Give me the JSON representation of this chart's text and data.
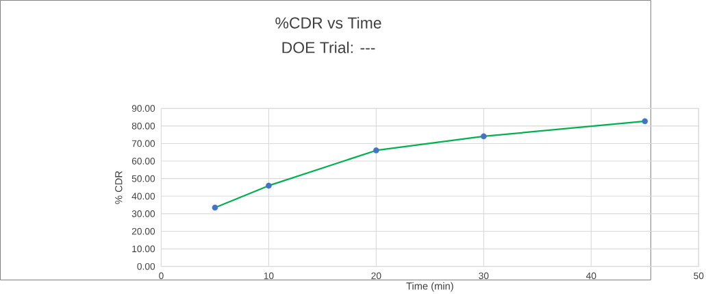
{
  "chart_data": {
    "type": "line",
    "title": "%CDR vs Time",
    "subtitle": "DOE Trial: ---",
    "xlabel": "Time (min)",
    "ylabel": "% CDR",
    "x": [
      5,
      10,
      20,
      30,
      45
    ],
    "series": [
      {
        "color": "#00b050",
        "colors": [
          "#4472c4",
          "#4472c4",
          "#4472c4",
          "#4472c4",
          "#4472c4"
        ],
        "values": [
          33.5,
          46.0,
          66.1,
          74.1,
          82.7
        ]
      }
    ],
    "xlim": [
      0,
      50
    ],
    "xticks": [
      0,
      10,
      20,
      30,
      40,
      50
    ],
    "ylim": [
      0,
      90
    ],
    "yticks": [
      {
        "value": 0,
        "label": "0.00"
      },
      {
        "value": 10,
        "label": "10.00"
      },
      {
        "value": 20,
        "label": "20.00"
      },
      {
        "value": 30,
        "label": "30.00"
      },
      {
        "value": 40,
        "label": "40.00"
      },
      {
        "value": 50,
        "label": "50.00"
      },
      {
        "value": 60,
        "label": "60.00"
      },
      {
        "value": 70,
        "label": "70.00"
      },
      {
        "value": 80,
        "label": "80.00"
      },
      {
        "value": 90,
        "label": "90.00"
      }
    ],
    "grid": true,
    "marker": "circle",
    "line_style": "solid",
    "legend": false
  }
}
